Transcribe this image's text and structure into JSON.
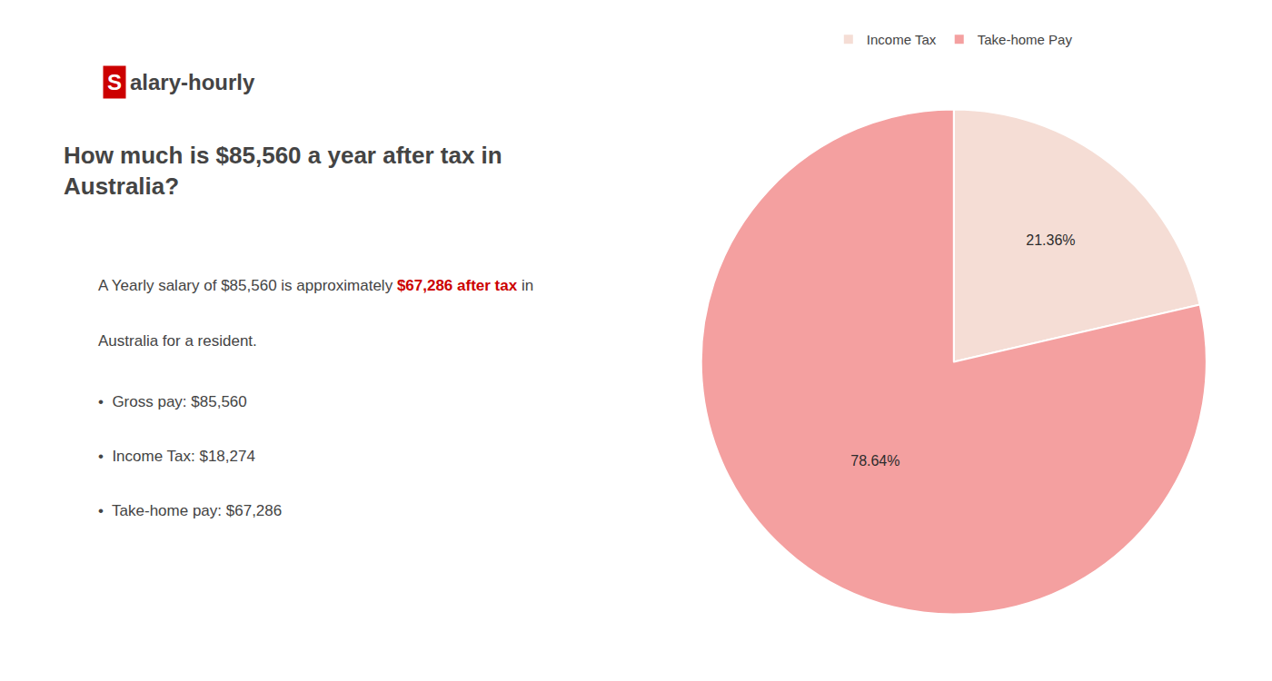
{
  "chart_data": {
    "type": "pie",
    "title": "How much is $85,560 a year after tax in\nAustralia?",
    "annotations": [
      [
        {
          "text": "S",
          "color": "#ffffff",
          "bgcolor": "#cc0000"
        },
        {
          "text": "alary-hourly"
        }
      ],
      [
        {
          "text": "A Yearly salary of $85,560 is approximately "
        },
        {
          "text": "$67,286 after tax",
          "color": "#cc0000"
        },
        {
          "text": " in"
        }
      ],
      [
        {
          "text": "Australia for a resident."
        }
      ],
      [
        {
          "text": "•  Gross pay: $85,560"
        }
      ],
      [
        {
          "text": "•  Income Tax: $18,274"
        }
      ],
      [
        {
          "text": "•  Take-home pay: $67,286"
        }
      ]
    ],
    "categories": [
      "Income Tax",
      "Take-home Pay"
    ],
    "values": [
      21.36,
      78.64
    ],
    "value_labels": [
      "21.36%",
      "78.64%"
    ],
    "colors": [
      "#f5ddd5",
      "#f4a0a0"
    ],
    "legend": "top"
  }
}
